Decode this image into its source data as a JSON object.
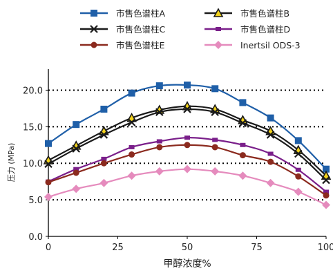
{
  "chart_data": {
    "type": "line",
    "title": "",
    "xlabel": "甲醇浓度%",
    "ylabel": "压力 (MPa)",
    "xlim": [
      0,
      100
    ],
    "ylim": [
      0,
      22.5
    ],
    "x_ticks": [
      0,
      25,
      50,
      75,
      100
    ],
    "x_tick_labels": [
      "0",
      "25",
      "50",
      "75",
      "100"
    ],
    "y_ticks": [
      0,
      5,
      10,
      15,
      20
    ],
    "y_tick_labels": [
      "0.0",
      "5.0",
      "10.0",
      "15.0",
      "20.0"
    ],
    "grid": "horizontal dotted",
    "legend_position": "top",
    "x": [
      0,
      10,
      20,
      30,
      40,
      50,
      60,
      70,
      80,
      90,
      100
    ],
    "series": [
      {
        "name": "市售色谱柱A",
        "color": "#1f5fa8",
        "marker": "square",
        "values": [
          12.7,
          15.3,
          17.4,
          19.6,
          20.6,
          20.7,
          20.2,
          18.3,
          16.2,
          13.1,
          9.2
        ]
      },
      {
        "name": "市售色谱柱B",
        "color": "#1a1a1a",
        "marker": "triangle",
        "values": [
          10.4,
          12.4,
          14.4,
          16.2,
          17.3,
          17.8,
          17.4,
          15.9,
          14.4,
          11.8,
          8.3
        ]
      },
      {
        "name": "市售色谱柱C",
        "color": "#1a1a1a",
        "marker": "x",
        "values": [
          9.9,
          12.0,
          13.9,
          15.6,
          17.0,
          17.4,
          17.0,
          15.5,
          13.9,
          11.3,
          7.7
        ]
      },
      {
        "name": "市售色谱柱D",
        "color": "#7a1f8a",
        "marker": "dash",
        "values": [
          7.5,
          9.2,
          10.6,
          12.2,
          13.0,
          13.5,
          13.2,
          12.5,
          11.3,
          9.1,
          6.1
        ]
      },
      {
        "name": "市售色谱柱E",
        "color": "#8b2a1e",
        "marker": "circle",
        "values": [
          7.4,
          8.7,
          10.0,
          11.2,
          12.2,
          12.5,
          12.2,
          11.1,
          10.2,
          8.2,
          5.6
        ]
      },
      {
        "name": "Inertsil ODS-3",
        "color": "#e58bbd",
        "marker": "diamond",
        "values": [
          5.4,
          6.5,
          7.3,
          8.3,
          8.9,
          9.2,
          8.9,
          8.3,
          7.3,
          6.1,
          4.3
        ]
      }
    ]
  }
}
